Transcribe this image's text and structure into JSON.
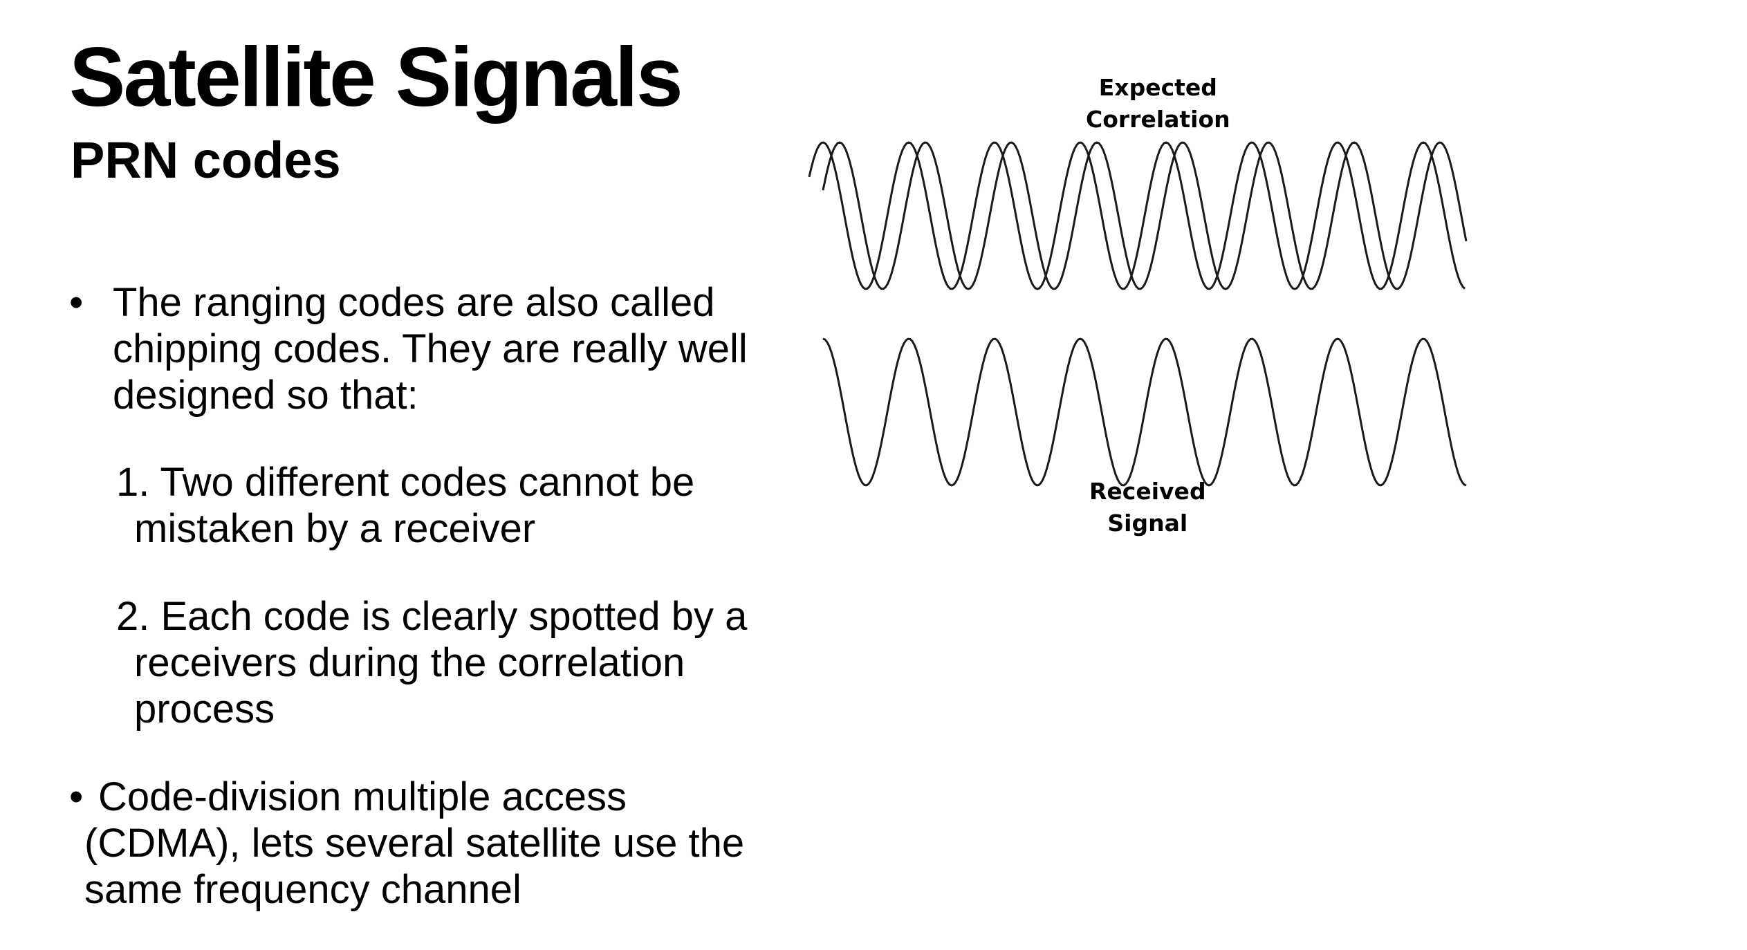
{
  "slide": {
    "title": "Satellite Signals",
    "subtitle": "PRN codes"
  },
  "content": {
    "bullet1": {
      "marker": "•",
      "lines": [
        "The ranging codes are also called",
        "chipping codes. They are really well",
        "designed so that:"
      ]
    },
    "item1": {
      "lines": [
        "1. Two different codes cannot be",
        "mistaken by a receiver"
      ]
    },
    "item2": {
      "lines": [
        "2. Each code is clearly spotted by a",
        "receivers during the correlation",
        "process"
      ]
    },
    "bullet2": {
      "marker": "•",
      "lines": [
        "Code-division multiple access",
        "(CDMA), lets several satellite use the",
        "same frequency channel"
      ]
    }
  },
  "figure": {
    "top_label": [
      "Expected",
      "Correlation"
    ],
    "bottom_label": [
      "Received",
      "Signal"
    ],
    "stroke_color": "#1a1a1a"
  }
}
